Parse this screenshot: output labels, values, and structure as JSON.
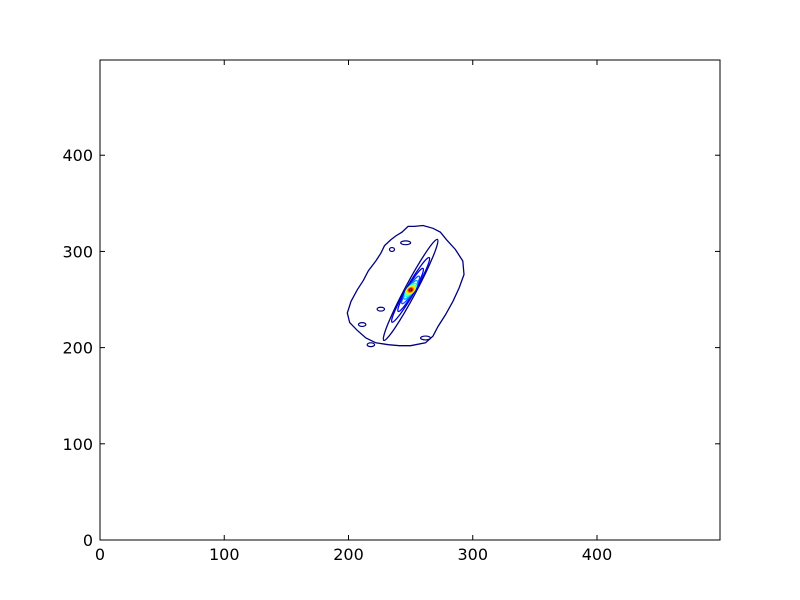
{
  "chart_data": {
    "type": "contour",
    "title": "",
    "xlabel": "",
    "ylabel": "",
    "xlim": [
      0,
      499
    ],
    "ylim": [
      0,
      499
    ],
    "x_ticks": [
      0,
      100,
      200,
      300,
      400
    ],
    "y_ticks": [
      0,
      100,
      200,
      300,
      400
    ],
    "grid": false,
    "legend": "none",
    "peak": {
      "x": 250,
      "y": 260
    },
    "outer_contour": [
      [
        250,
        202
      ],
      [
        262,
        205
      ],
      [
        268,
        212
      ],
      [
        272,
        222
      ],
      [
        278,
        234
      ],
      [
        284,
        248
      ],
      [
        289,
        262
      ],
      [
        293,
        276
      ],
      [
        292,
        290
      ],
      [
        286,
        302
      ],
      [
        279,
        312
      ],
      [
        274,
        320
      ],
      [
        268,
        324
      ],
      [
        260,
        327
      ],
      [
        253,
        326
      ],
      [
        248,
        326
      ],
      [
        243,
        320
      ],
      [
        238,
        316
      ],
      [
        234,
        312
      ],
      [
        229,
        306
      ],
      [
        226,
        298
      ],
      [
        222,
        290
      ],
      [
        216,
        280
      ],
      [
        212,
        270
      ],
      [
        207,
        260
      ],
      [
        202,
        248
      ],
      [
        199,
        236
      ],
      [
        201,
        226
      ],
      [
        207,
        218
      ],
      [
        214,
        210
      ],
      [
        222,
        205
      ],
      [
        232,
        203
      ],
      [
        241,
        202
      ],
      [
        250,
        202
      ]
    ],
    "small_islands": [
      {
        "x": 211,
        "y": 224,
        "rx": 3,
        "ry": 2
      },
      {
        "x": 226,
        "y": 240,
        "rx": 3,
        "ry": 2
      },
      {
        "x": 218,
        "y": 203,
        "rx": 3,
        "ry": 2
      },
      {
        "x": 262,
        "y": 210,
        "rx": 4,
        "ry": 2
      },
      {
        "x": 246,
        "y": 309,
        "rx": 4,
        "ry": 2
      },
      {
        "x": 235,
        "y": 302,
        "rx": 2,
        "ry": 2
      }
    ],
    "levels": [
      {
        "color": "#00007f",
        "rx": 46,
        "ry": 6,
        "angle": 62
      },
      {
        "color": "#0000cd",
        "rx": 30,
        "ry": 4.6,
        "angle": 60
      },
      {
        "color": "#0000ff",
        "rx": 20,
        "ry": 3.8,
        "angle": 60
      },
      {
        "color": "#0050ff",
        "rx": 13,
        "ry": 3.2,
        "angle": 58
      },
      {
        "color": "#00a4ff",
        "rx": 9,
        "ry": 3.0,
        "angle": 55
      },
      {
        "color": "#1cffdb",
        "rx": 6.5,
        "ry": 3.4,
        "angle": 50
      },
      {
        "color": "#6dff8a",
        "rx": 5,
        "ry": 3.4,
        "angle": 45
      },
      {
        "color": "#c0ff36",
        "rx": 4,
        "ry": 3.2,
        "angle": 40
      },
      {
        "color": "#ffe500",
        "rx": 3.2,
        "ry": 2.8,
        "angle": 35
      },
      {
        "color": "#ff9400",
        "rx": 2.5,
        "ry": 2.2,
        "angle": 30
      },
      {
        "color": "#ff3000",
        "rx": 1.8,
        "ry": 1.6,
        "angle": 25
      },
      {
        "color": "#7f0000",
        "rx": 1.0,
        "ry": 0.9,
        "angle": 20
      }
    ]
  }
}
